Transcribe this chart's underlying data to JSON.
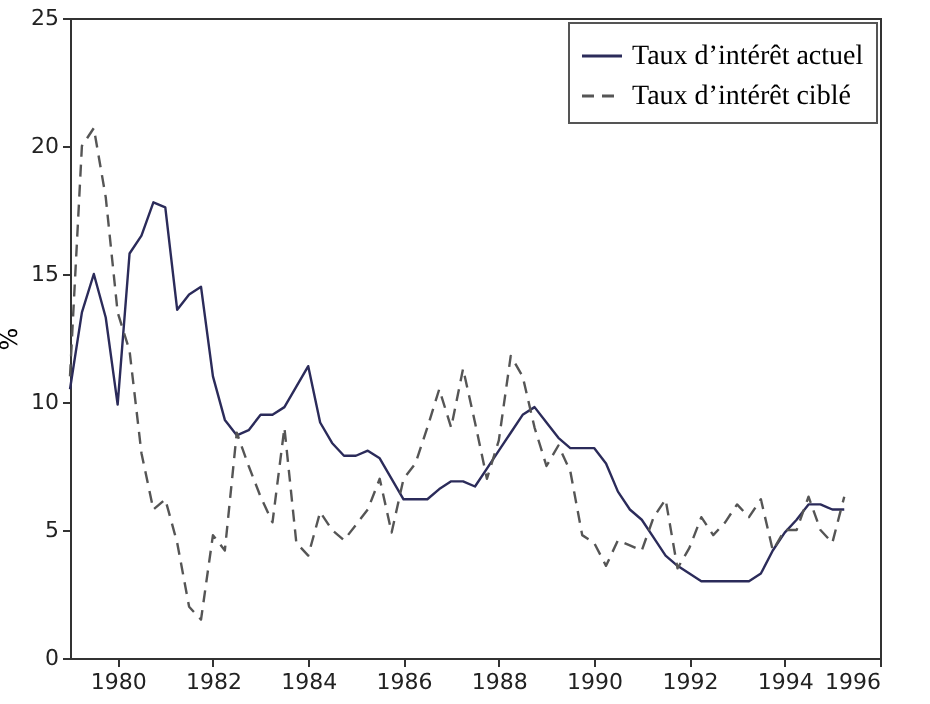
{
  "chart_data": {
    "type": "line",
    "ylabel": "%",
    "x": [
      1979,
      1979.25,
      1979.5,
      1979.75,
      1980,
      1980.25,
      1980.5,
      1980.75,
      1981,
      1981.25,
      1981.5,
      1981.75,
      1982,
      1982.25,
      1982.5,
      1982.75,
      1983,
      1983.25,
      1983.5,
      1983.75,
      1984,
      1984.25,
      1984.5,
      1984.75,
      1985,
      1985.25,
      1985.5,
      1985.75,
      1986,
      1986.25,
      1986.5,
      1986.75,
      1987,
      1987.25,
      1987.5,
      1987.75,
      1988,
      1988.25,
      1988.5,
      1988.75,
      1989,
      1989.25,
      1989.5,
      1989.75,
      1990,
      1990.25,
      1990.5,
      1990.75,
      1991,
      1991.25,
      1991.5,
      1991.75,
      1992,
      1992.25,
      1992.5,
      1992.75,
      1993,
      1993.25,
      1993.5,
      1993.75,
      1994,
      1994.25,
      1994.5,
      1994.75,
      1995,
      1995.25
    ],
    "series": [
      {
        "name": "Taux d’intérêt actuel",
        "color": "#2b2b5a",
        "line_style": "solid",
        "values": [
          10.5,
          13.5,
          15,
          13.3,
          9.9,
          15.8,
          16.5,
          17.8,
          17.6,
          13.6,
          14.2,
          14.5,
          11,
          9.3,
          8.7,
          8.9,
          9.5,
          9.5,
          9.8,
          10.6,
          11.4,
          9.2,
          8.4,
          7.9,
          7.9,
          8.1,
          7.8,
          7.0,
          6.2,
          6.2,
          6.2,
          6.6,
          6.9,
          6.9,
          6.7,
          7.4,
          8.1,
          8.8,
          9.5,
          9.8,
          9.2,
          8.6,
          8.2,
          8.2,
          8.2,
          7.6,
          6.5,
          5.8,
          5.4,
          4.7,
          4.0,
          3.6,
          3.3,
          3.0,
          3.0,
          3.0,
          3.0,
          3.0,
          3.3,
          4.2,
          4.9,
          5.4,
          6.0,
          6.0,
          5.8,
          5.8
        ]
      },
      {
        "name": "Taux d’intérêt ciblé",
        "color": "#555555",
        "line_style": "dashed",
        "values": [
          11,
          20,
          20.7,
          18,
          13.5,
          12,
          8,
          5.8,
          6.2,
          4.5,
          2.0,
          1.5,
          4.8,
          4.2,
          8.8,
          7.5,
          6.3,
          5.3,
          9.0,
          4.5,
          4.0,
          5.7,
          5.0,
          4.6,
          5.2,
          5.8,
          7.0,
          4.9,
          7.0,
          7.6,
          9.0,
          10.5,
          9.0,
          11.3,
          9.2,
          7.0,
          8.5,
          11.8,
          11.0,
          9.0,
          7.5,
          8.3,
          7.3,
          4.8,
          4.5,
          3.6,
          4.6,
          4.4,
          4.2,
          5.5,
          6.2,
          3.5,
          4.3,
          5.5,
          4.8,
          5.3,
          6.0,
          5.5,
          6.2,
          4.2,
          5.0,
          5.0,
          6.3,
          5.0,
          4.5,
          6.3
        ]
      }
    ],
    "xlim": [
      1979,
      1996
    ],
    "xticks": [
      1980,
      1982,
      1984,
      1986,
      1988,
      1990,
      1992,
      1994,
      1996
    ],
    "ylim": [
      0,
      25
    ],
    "yticks": [
      0,
      5,
      10,
      15,
      20,
      25
    ],
    "grid": false,
    "legend": "top right",
    "marker": "none"
  }
}
